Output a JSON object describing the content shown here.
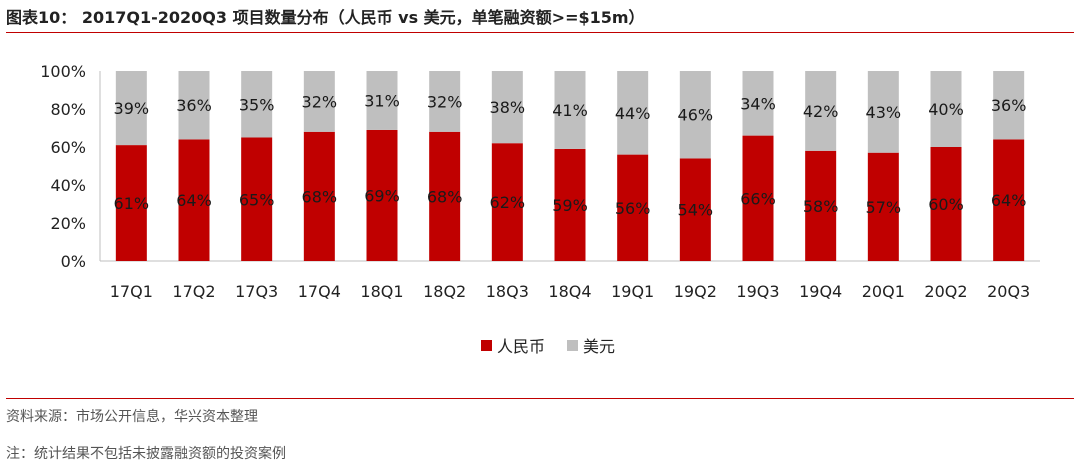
{
  "figure": {
    "title": "图表10： 2017Q1-2020Q3 项目数量分布（人民币 vs 美元，单笔融资额>=$15m）",
    "source": "资料来源：市场公开信息，华兴资本整理",
    "note": "注：统计结果不包括未披露融资额的投资案例"
  },
  "colors": {
    "rmb": "#c00000",
    "usd": "#bfbfbf",
    "rule": "#c00000"
  },
  "chart_data": {
    "type": "bar",
    "stacked": true,
    "categories": [
      "17Q1",
      "17Q2",
      "17Q3",
      "17Q4",
      "18Q1",
      "18Q2",
      "18Q3",
      "18Q4",
      "19Q1",
      "19Q2",
      "19Q3",
      "19Q4",
      "20Q1",
      "20Q2",
      "20Q3"
    ],
    "series": [
      {
        "name": "人民币",
        "values": [
          61,
          64,
          65,
          68,
          69,
          68,
          62,
          59,
          56,
          54,
          66,
          58,
          57,
          60,
          64
        ]
      },
      {
        "name": "美元",
        "values": [
          39,
          36,
          35,
          32,
          31,
          32,
          38,
          41,
          44,
          46,
          34,
          42,
          43,
          40,
          36
        ]
      }
    ],
    "ylim": [
      0,
      100
    ],
    "yticks": [
      "0%",
      "20%",
      "40%",
      "60%",
      "80%",
      "100%"
    ],
    "value_suffix": "%",
    "legend_position": "bottom-center",
    "grid": false
  }
}
